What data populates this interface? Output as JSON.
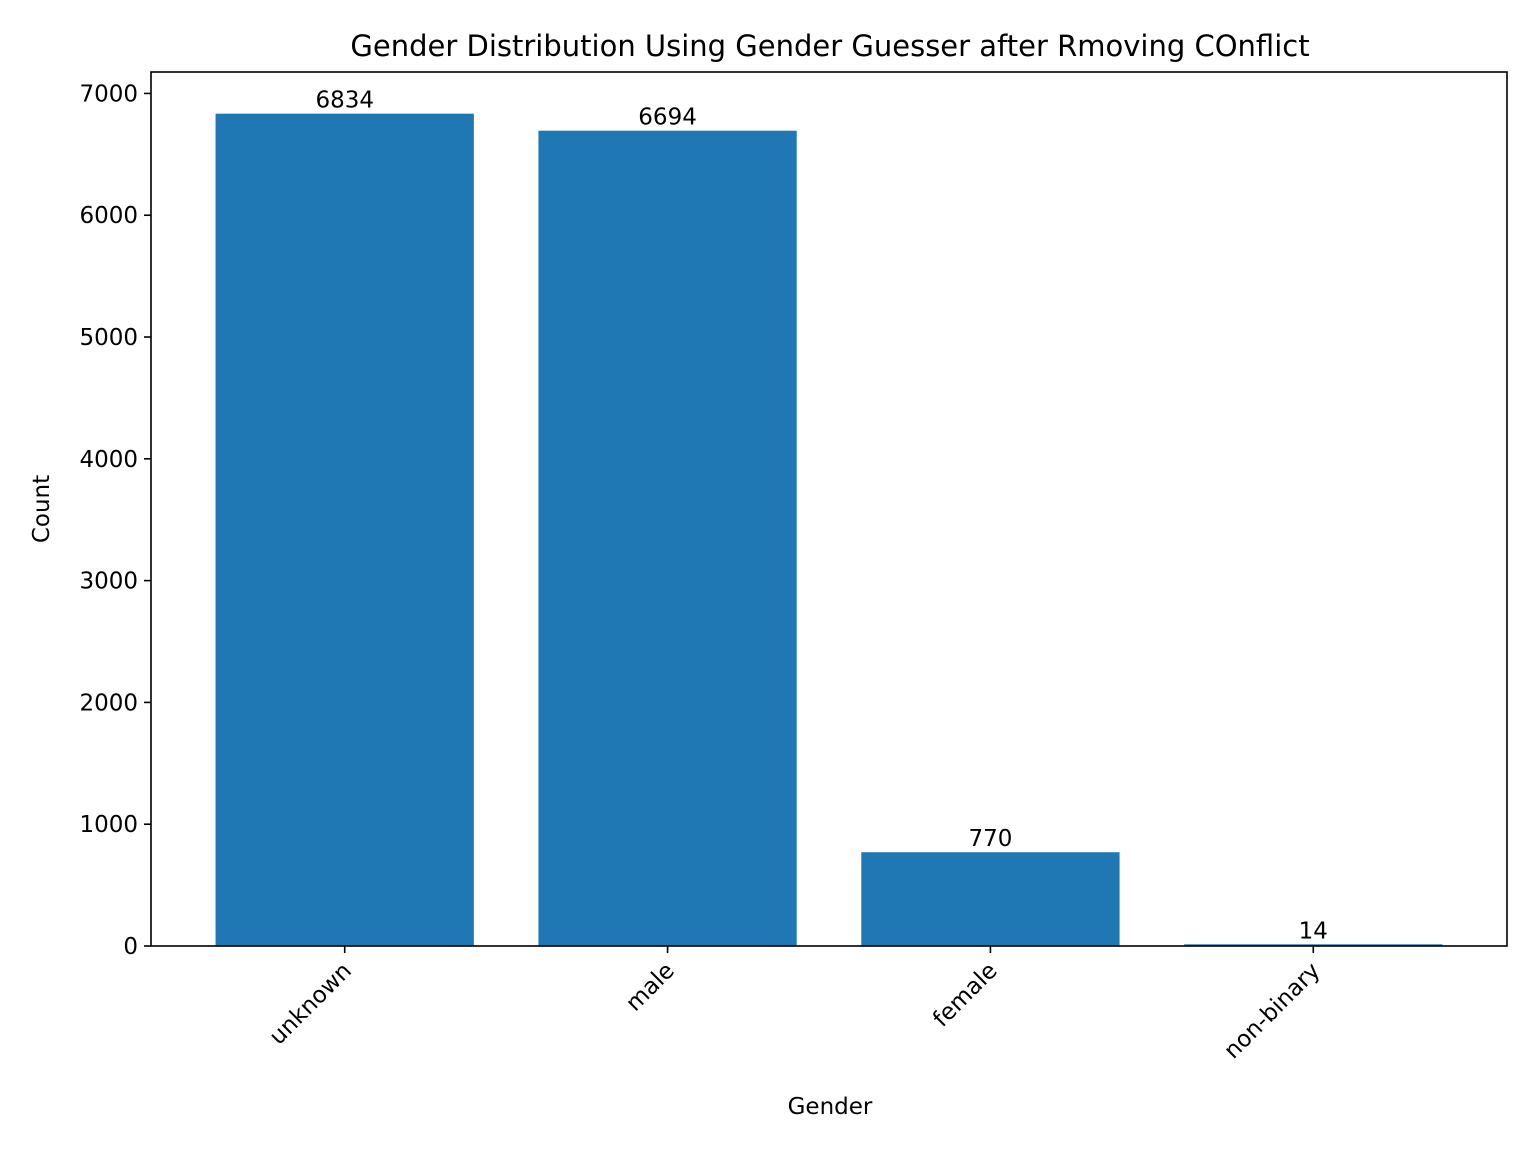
{
  "chart_data": {
    "type": "bar",
    "title": "Gender Distribution Using Gender Guesser after Rmoving COnflict",
    "xlabel": "Gender",
    "ylabel": "Count",
    "categories": [
      "unknown",
      "male",
      "female",
      "non-binary"
    ],
    "values": [
      6834,
      6694,
      770,
      14
    ],
    "data_labels": [
      "6834",
      "6694",
      "770",
      "14"
    ],
    "ylim": [
      0,
      7176
    ],
    "yticks": [
      0,
      1000,
      2000,
      3000,
      4000,
      5000,
      6000,
      7000
    ],
    "bar_color": "#1f77b4",
    "grid": false,
    "legend": "none",
    "xtick_rotation_deg": 45
  }
}
